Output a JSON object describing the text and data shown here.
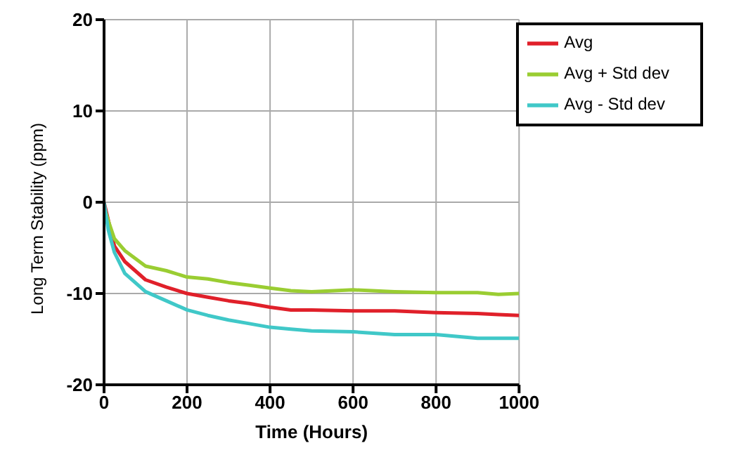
{
  "chart_data": {
    "type": "line",
    "xlabel": "Time (Hours)",
    "ylabel": "Long Term Stability (ppm)",
    "x": [
      0,
      10,
      25,
      50,
      100,
      150,
      200,
      250,
      300,
      350,
      400,
      450,
      500,
      600,
      700,
      800,
      900,
      950,
      1000
    ],
    "series": [
      {
        "name": "Avg",
        "color": "#e0202a",
        "values": [
          0,
          null,
          -4.8,
          -6.5,
          -8.5,
          -9.3,
          -10,
          -10.4,
          -10.8,
          -11.1,
          -11.5,
          -11.8,
          -11.8,
          -11.9,
          -11.9,
          -12.1,
          -12.2,
          -12.3,
          -12.4
        ]
      },
      {
        "name": "Avg + Std dev",
        "color": "#9acd32",
        "values": [
          -0.5,
          -2,
          -4,
          -5.3,
          -7,
          -7.5,
          -8.2,
          -8.4,
          -8.8,
          -9.1,
          -9.4,
          -9.7,
          -9.8,
          -9.6,
          -9.8,
          -9.9,
          -9.9,
          -10.1,
          -10
        ]
      },
      {
        "name": "Avg - Std dev",
        "color": "#40c8c8",
        "values": [
          0,
          -3,
          -5.5,
          -7.8,
          -9.8,
          -10.8,
          -11.8,
          -12.4,
          -12.9,
          -13.3,
          -13.7,
          -13.9,
          -14.1,
          -14.2,
          -14.5,
          -14.5,
          -14.9,
          -14.9,
          -14.9
        ]
      }
    ],
    "xlim": [
      0,
      1000
    ],
    "xticks": [
      0,
      200,
      400,
      600,
      800,
      1000
    ],
    "ylim": [
      -20,
      20
    ],
    "yticks": [
      -20,
      -10,
      0,
      10,
      20
    ],
    "grid": true,
    "legend": "top right",
    "marker": "none",
    "line_style": "solid"
  }
}
